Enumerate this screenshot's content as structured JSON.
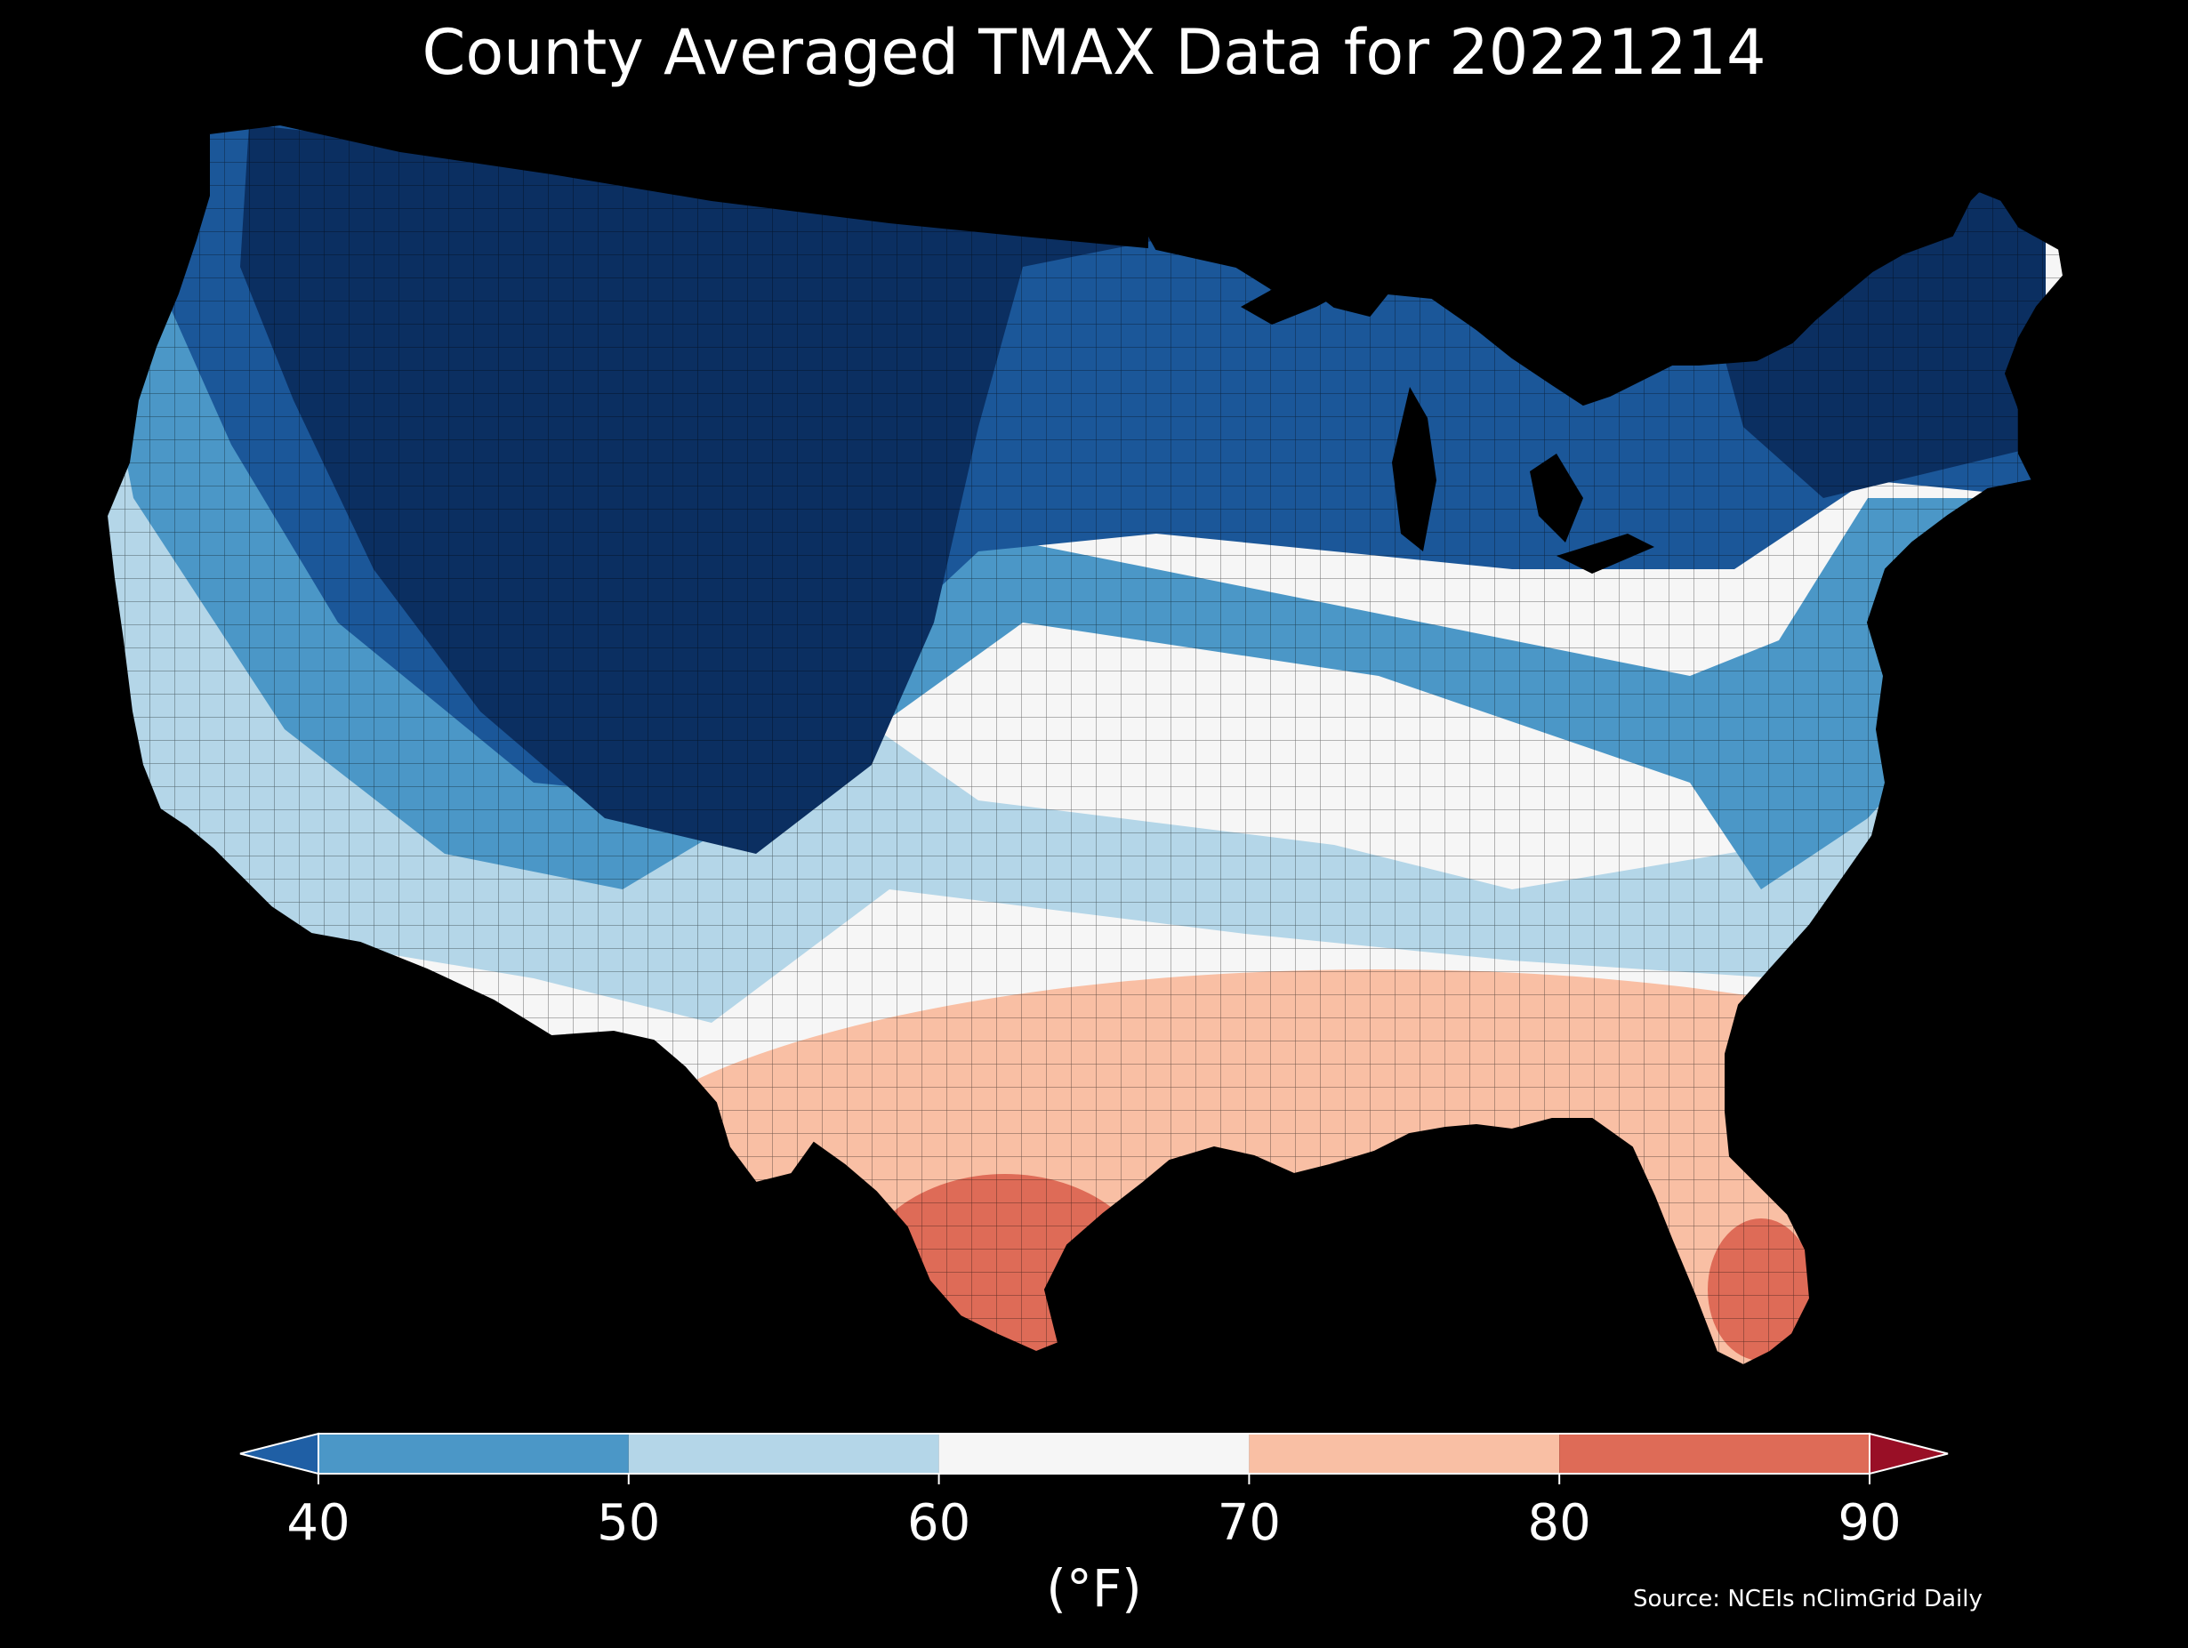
{
  "title": "County Averaged TMAX Data for 20221214",
  "colorbar": {
    "label": "(°F)",
    "ticks": [
      "40",
      "50",
      "60",
      "70",
      "80",
      "90"
    ],
    "segments": [
      {
        "from": 40,
        "to": 50,
        "color": "#4b97c7"
      },
      {
        "from": 50,
        "to": 60,
        "color": "#b4d6e8"
      },
      {
        "from": 60,
        "to": 70,
        "color": "#f6f6f6"
      },
      {
        "from": 70,
        "to": 80,
        "color": "#f9bfa4"
      },
      {
        "from": 80,
        "to": 90,
        "color": "#de6b57"
      }
    ],
    "extend_low_color": "#1f5fa5",
    "extend_high_color": "#990f26"
  },
  "source": "Source: NCEIs nClimGrid Daily",
  "colors": {
    "background": "#000000",
    "very_cold": "#0b2f61",
    "cold": "#1b5799",
    "cool": "#4b97c7",
    "mild": "#b4d6e8",
    "neutral": "#f6f6f6",
    "warm": "#f9bfa4",
    "hot": "#de6b57"
  }
}
